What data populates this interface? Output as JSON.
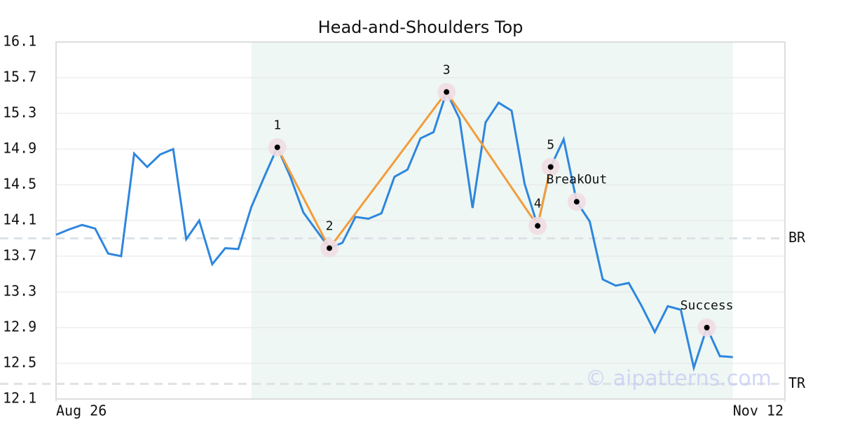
{
  "chart_data": {
    "type": "line",
    "title": "Head-and-Shoulders Top",
    "x": [
      0,
      1,
      2,
      3,
      4,
      5,
      6,
      7,
      8,
      9,
      10,
      11,
      12,
      13,
      14,
      15,
      16,
      17,
      18,
      19,
      20,
      21,
      22,
      23,
      24,
      25,
      26,
      27,
      28,
      29,
      30,
      31,
      32,
      33,
      34,
      35,
      36,
      37,
      38,
      39,
      40,
      41,
      42,
      43,
      44,
      45,
      46,
      47,
      48,
      49,
      50,
      51,
      52
    ],
    "series": [
      {
        "color": "#2e86de",
        "values": [
          13.94,
          14.0,
          14.05,
          14.01,
          13.73,
          13.7,
          14.85,
          14.7,
          14.84,
          14.9,
          13.89,
          14.1,
          13.61,
          13.79,
          13.78,
          14.25,
          14.59,
          14.92,
          14.59,
          14.19,
          13.99,
          13.79,
          13.85,
          14.14,
          14.12,
          14.18,
          14.59,
          14.67,
          15.02,
          15.09,
          15.54,
          15.24,
          14.24,
          15.2,
          15.42,
          15.33,
          14.51,
          14.04,
          14.7,
          15.01,
          14.31,
          14.09,
          13.44,
          13.37,
          13.4,
          13.14,
          12.85,
          13.14,
          13.1,
          12.45,
          12.9,
          12.58,
          12.57
        ]
      }
    ],
    "pattern": {
      "color": "#f39c3c",
      "points": [
        {
          "label": "1",
          "x": 17,
          "value": 14.92
        },
        {
          "label": "2",
          "x": 21,
          "value": 13.79
        },
        {
          "label": "3",
          "x": 30,
          "value": 15.54
        },
        {
          "label": "4",
          "x": 37,
          "value": 14.04
        },
        {
          "label": "5",
          "x": 38,
          "value": 14.7
        }
      ]
    },
    "annotations": [
      {
        "label": "BreakOut",
        "x": 40,
        "value": 14.31
      },
      {
        "label": "Success",
        "x": 50,
        "value": 12.9
      }
    ],
    "levels": [
      {
        "label": "BR",
        "value": 13.9
      },
      {
        "label": "TR",
        "value": 12.27
      }
    ],
    "shade": {
      "color": "#eef7f3",
      "x": [
        15,
        52
      ]
    },
    "xlim": [
      0,
      56
    ],
    "xticks": [
      {
        "value": 0,
        "label": "Aug 26"
      },
      {
        "value": 56,
        "label": "Nov 12"
      }
    ],
    "ylim": [
      12.1,
      16.1
    ],
    "yticks": [
      12.1,
      12.5,
      12.9,
      13.3,
      13.7,
      14.1,
      14.5,
      14.9,
      15.3,
      15.7,
      16.1
    ],
    "grid": true,
    "watermark": "© aipatterns.com"
  }
}
